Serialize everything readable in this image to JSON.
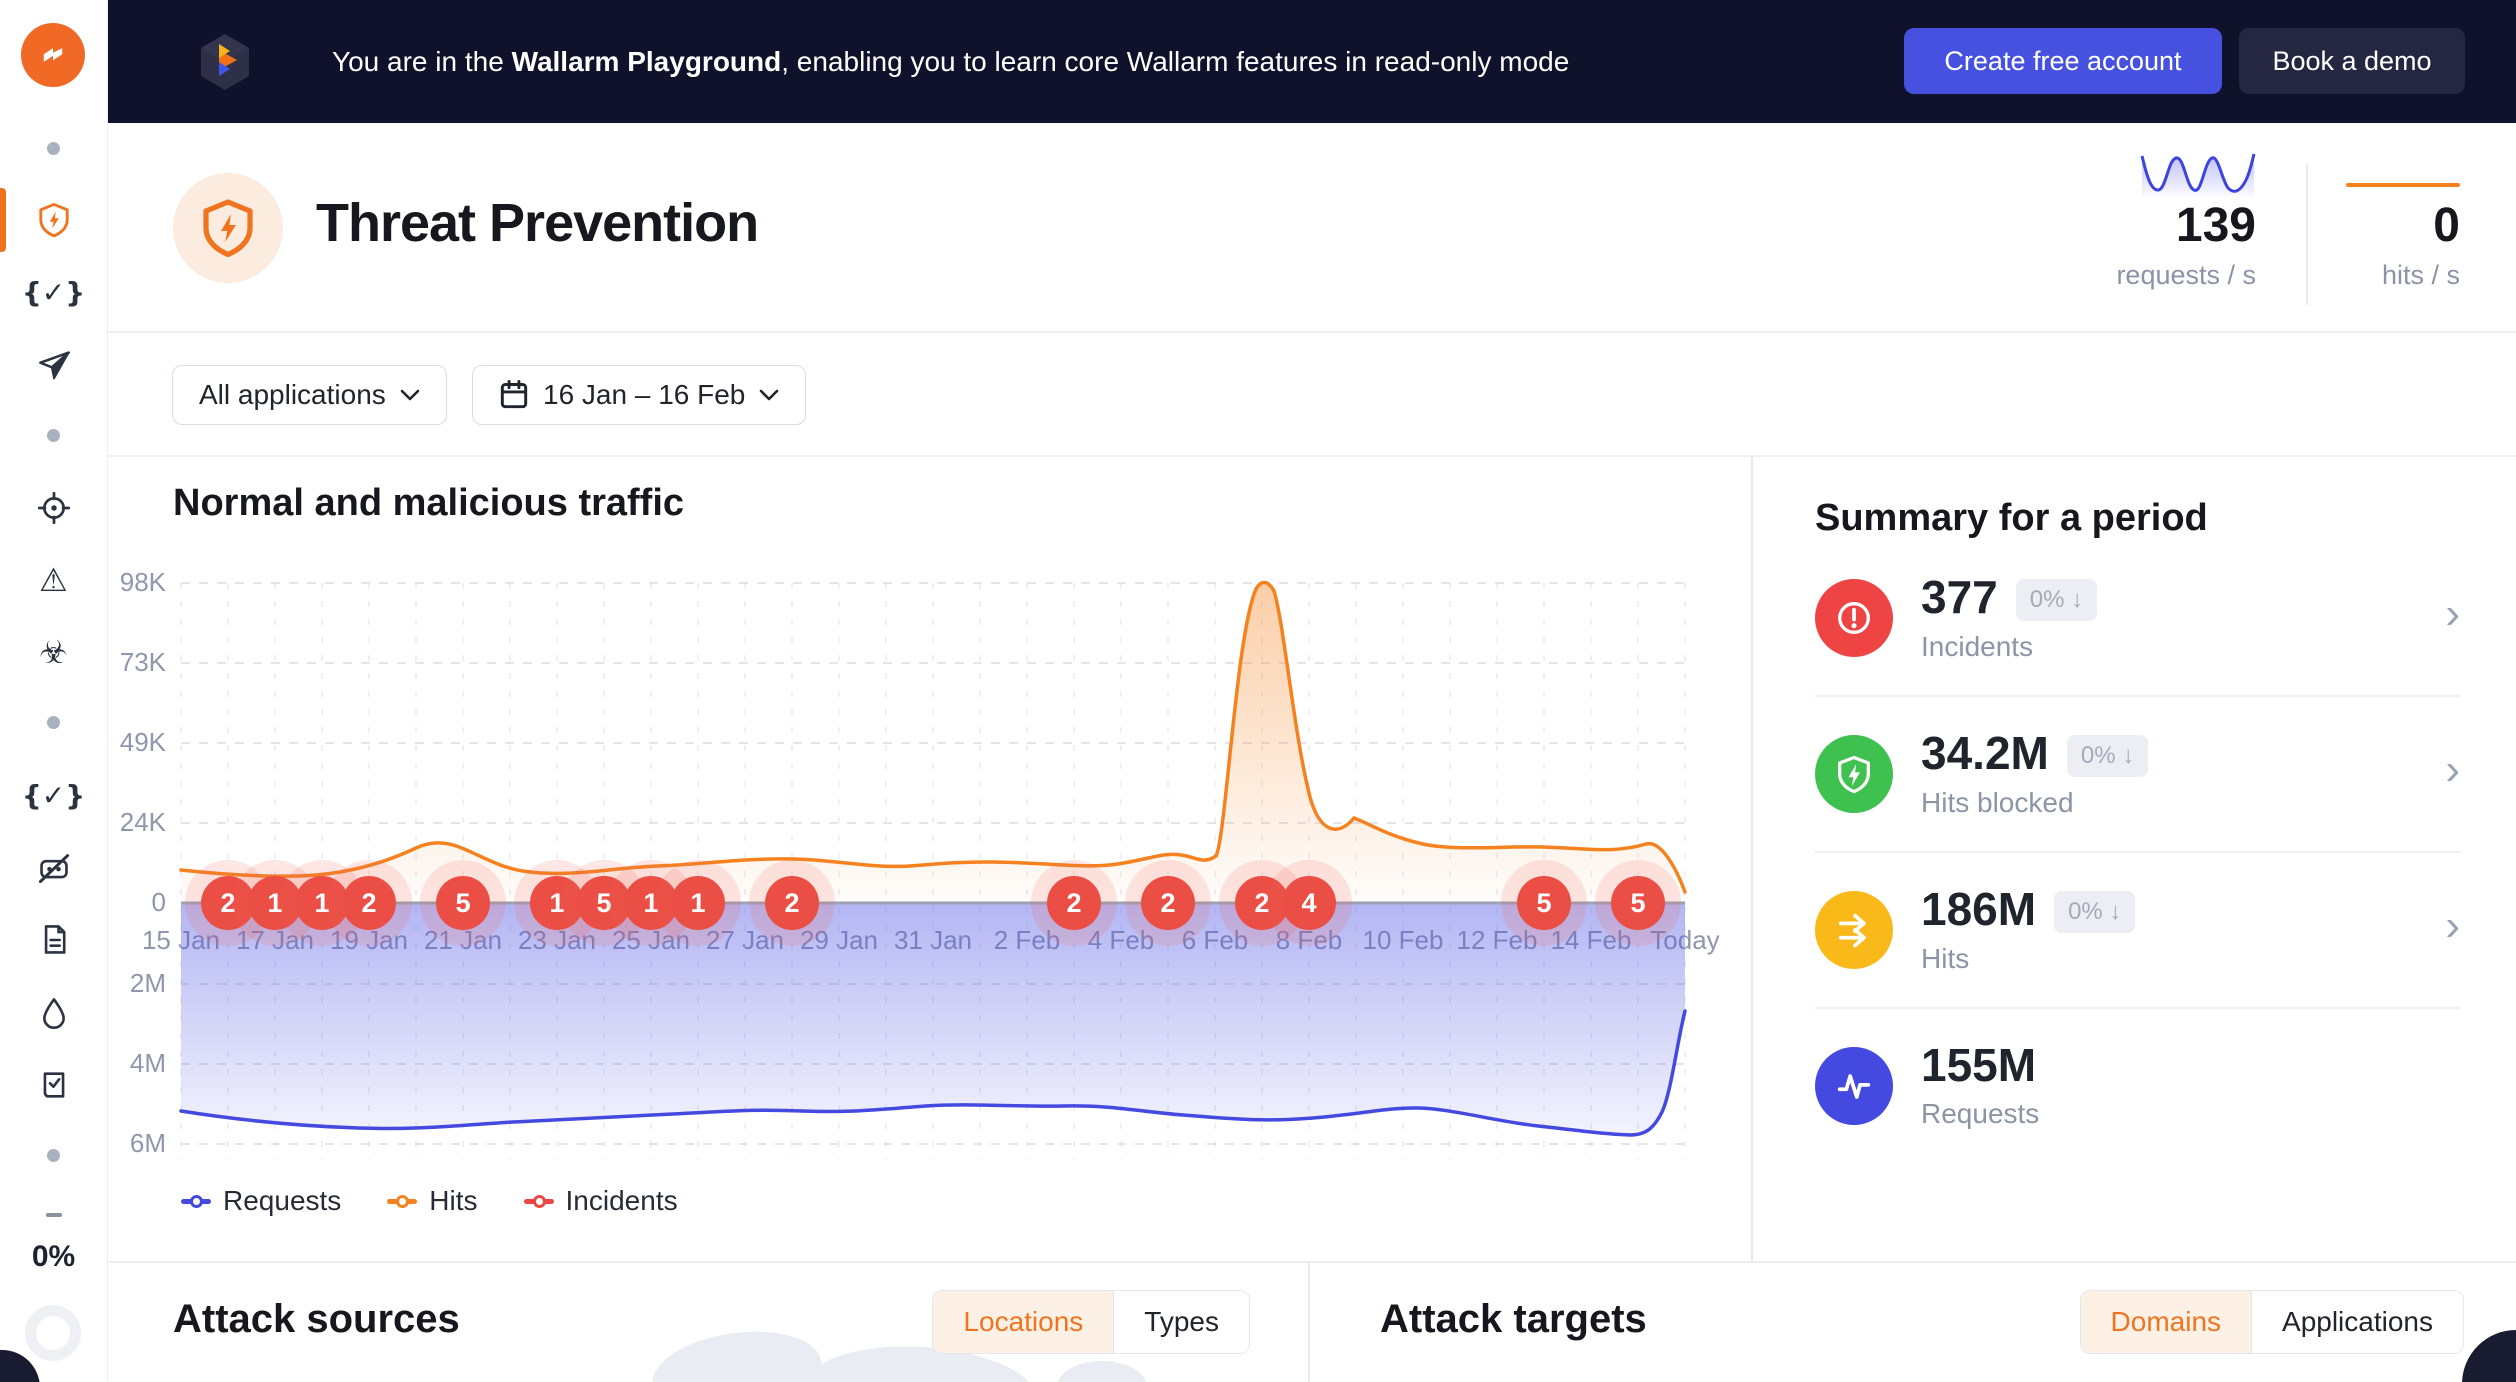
{
  "banner": {
    "text_prefix": "You are in the ",
    "text_bold": "Wallarm Playground",
    "text_suffix": ", enabling you to learn core Wallarm features in read-only mode",
    "create_button": "Create free account",
    "demo_button": "Book a demo"
  },
  "sidebar": {
    "usage_percent": "0%",
    "items": [
      {
        "icon": "dot"
      },
      {
        "icon": "shield-bolt",
        "active": true
      },
      {
        "icon": "braces-check"
      },
      {
        "icon": "paper-plane"
      },
      {
        "icon": "dot"
      },
      {
        "icon": "target"
      },
      {
        "icon": "warning-triangle"
      },
      {
        "icon": "biohazard"
      },
      {
        "icon": "dot"
      },
      {
        "icon": "braces-check"
      },
      {
        "icon": "robot-disabled"
      },
      {
        "icon": "document"
      },
      {
        "icon": "water-drop"
      },
      {
        "icon": "book-check"
      },
      {
        "icon": "dot"
      },
      {
        "icon": "dash"
      }
    ]
  },
  "header": {
    "title": "Threat Prevention",
    "requests_rate": "139",
    "requests_rate_label": "requests / s",
    "hits_rate": "0",
    "hits_rate_label": "hits / s"
  },
  "filters": {
    "applications": "All applications",
    "date_range": "16 Jan – 16 Feb"
  },
  "chart_data": {
    "type": "area",
    "title": "Normal and malicious traffic",
    "x_tick_labels": [
      "15 Jan",
      "17 Jan",
      "19 Jan",
      "21 Jan",
      "23 Jan",
      "25 Jan",
      "27 Jan",
      "29 Jan",
      "31 Jan",
      "2 Feb",
      "4 Feb",
      "6 Feb",
      "8 Feb",
      "10 Feb",
      "12 Feb",
      "14 Feb",
      "Today"
    ],
    "y_axis_upper_labels": [
      "98K",
      "73K",
      "49K",
      "24K",
      "0"
    ],
    "y_axis_lower_labels": [
      "2M",
      "4M",
      "6M"
    ],
    "upper_axis_range_hits": [
      0,
      98000
    ],
    "lower_axis_range_requests": [
      0,
      6000000
    ],
    "grid": "dashed",
    "legend_position": "bottom-left",
    "series": [
      {
        "name": "Requests",
        "color": "#4449e0",
        "orientation": "below-axis",
        "unit": "requests/day",
        "values_M": [
          5.0,
          5.2,
          5.35,
          5.4,
          5.45,
          5.4,
          5.3,
          5.2,
          5.15,
          5.2,
          5.25,
          5.2,
          5.1,
          5.05,
          5.1,
          5.0,
          4.95,
          5.0,
          5.05,
          5.1,
          5.15,
          5.2,
          5.15,
          5.05,
          5.1,
          5.2,
          5.35,
          5.45,
          5.5,
          5.55,
          5.5,
          5.3,
          2.7
        ]
      },
      {
        "name": "Hits",
        "color": "#f5821f",
        "orientation": "above-axis",
        "unit": "hits/day",
        "values_K": [
          10,
          9,
          8.5,
          9,
          10,
          17,
          13,
          10.5,
          9.5,
          10,
          9.5,
          11,
          12,
          13.5,
          11.5,
          10,
          11.5,
          12.5,
          11,
          10,
          13.5,
          9,
          8.5,
          98,
          20,
          26,
          16.5,
          16.5,
          16,
          15,
          17,
          16,
          11
        ]
      },
      {
        "name": "Incidents",
        "color": "#ee4545",
        "orientation": "markers-on-axis"
      }
    ],
    "incident_markers": [
      {
        "date": "16 Jan",
        "day_index": 1,
        "count": 2
      },
      {
        "date": "17 Jan",
        "day_index": 2,
        "count": 1
      },
      {
        "date": "18 Jan",
        "day_index": 3,
        "count": 1
      },
      {
        "date": "19 Jan",
        "day_index": 4,
        "count": 2
      },
      {
        "date": "21 Jan",
        "day_index": 6,
        "count": 5
      },
      {
        "date": "23 Jan",
        "day_index": 8,
        "count": 1
      },
      {
        "date": "24 Jan",
        "day_index": 9,
        "count": 5
      },
      {
        "date": "25 Jan",
        "day_index": 10,
        "count": 1
      },
      {
        "date": "26 Jan",
        "day_index": 11,
        "count": 1
      },
      {
        "date": "28 Jan",
        "day_index": 13,
        "count": 2
      },
      {
        "date": "3 Feb",
        "day_index": 19,
        "count": 2
      },
      {
        "date": "5 Feb",
        "day_index": 21,
        "count": 2
      },
      {
        "date": "7 Feb",
        "day_index": 23,
        "count": 2
      },
      {
        "date": "8 Feb",
        "day_index": 24,
        "count": 4
      },
      {
        "date": "13 Feb",
        "day_index": 29,
        "count": 5
      },
      {
        "date": "15 Feb",
        "day_index": 31,
        "count": 5
      }
    ],
    "legend": [
      {
        "label": "Requests",
        "color": "#4449e0"
      },
      {
        "label": "Hits",
        "color": "#f5821f"
      },
      {
        "label": "Incidents",
        "color": "#ee4545"
      }
    ]
  },
  "summary": {
    "title": "Summary for a period",
    "items": [
      {
        "value": "377",
        "badge": "0% ↓",
        "label": "Incidents",
        "icon": "alert-circle",
        "color": "#ef4444",
        "chevron": true
      },
      {
        "value": "34.2M",
        "badge": "0% ↓",
        "label": "Hits blocked",
        "icon": "shield-bolt",
        "color": "#3fc14f",
        "chevron": true
      },
      {
        "value": "186M",
        "badge": "0% ↓",
        "label": "Hits",
        "icon": "double-arrow",
        "color": "#f8b919",
        "chevron": true
      },
      {
        "value": "155M",
        "badge": null,
        "label": "Requests",
        "icon": "pulse",
        "color": "#4449e0",
        "chevron": false
      }
    ]
  },
  "attack_sources": {
    "title": "Attack sources",
    "tabs": [
      "Locations",
      "Types"
    ],
    "active_tab": "Locations"
  },
  "attack_targets": {
    "title": "Attack targets",
    "tabs": [
      "Domains",
      "Applications"
    ],
    "active_tab": "Domains"
  },
  "colors": {
    "accent_orange": "#f0731f",
    "brand_orange_logo": "#f06a25",
    "banner_bg": "#10112a",
    "primary_button": "#4651e0",
    "incident_red": "#ea4a41",
    "requests_blue": "#4449e0",
    "hits_orange": "#f5821f",
    "green": "#3fc14f",
    "amber": "#f8b919"
  }
}
